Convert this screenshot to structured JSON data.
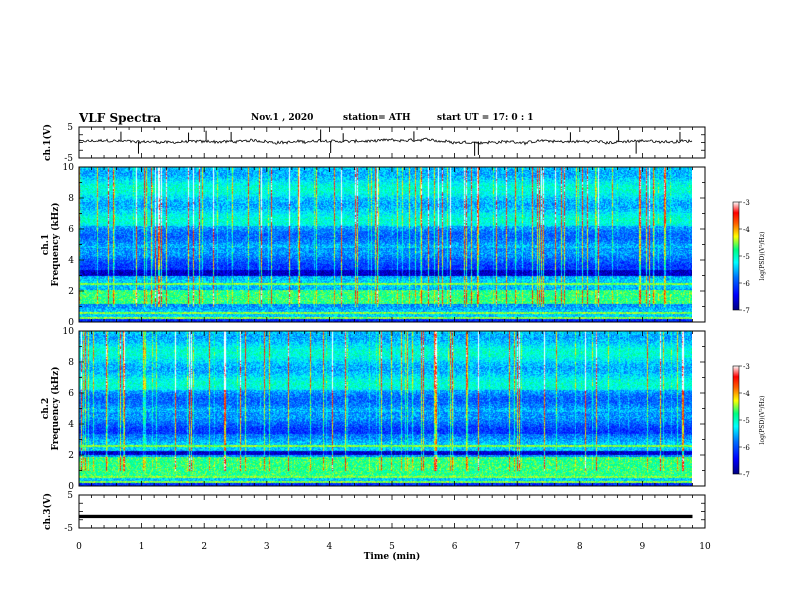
{
  "header": {
    "title": "VLF Spectra",
    "date": "Nov.1  , 2020",
    "station": "station= ATH",
    "start": "start  UT =   17: 0  : 1"
  },
  "chart_data": [
    {
      "id": "ch1-waveform",
      "type": "line",
      "ylabel": "ch.1(V)",
      "ylim": [
        -5,
        5
      ],
      "yticks": [
        "5",
        "-5"
      ],
      "xlim": [
        0,
        10
      ],
      "x_end": 9.8,
      "description_of_series": "noisy waveform near 0 V with occasional spikes",
      "baseline": 0.3,
      "spikes": [
        {
          "x": 0.67,
          "v": 3.5
        },
        {
          "x": 0.95,
          "v": -3.6
        },
        {
          "x": 1.75,
          "v": 3.2
        },
        {
          "x": 2.03,
          "v": 3.8
        },
        {
          "x": 2.43,
          "v": 3.4
        },
        {
          "x": 3.86,
          "v": 4.2
        },
        {
          "x": 4.02,
          "v": -3.4
        },
        {
          "x": 4.22,
          "v": 3.0
        },
        {
          "x": 5.35,
          "v": 3.6
        },
        {
          "x": 6.32,
          "v": -4.3
        },
        {
          "x": 6.38,
          "v": -4.0
        },
        {
          "x": 7.85,
          "v": 3.3
        },
        {
          "x": 8.62,
          "v": 4.0
        },
        {
          "x": 8.9,
          "v": -3.6
        },
        {
          "x": 9.6,
          "v": 3.4
        }
      ]
    },
    {
      "id": "ch1-spectrogram",
      "type": "heatmap",
      "ylabel": "ch.1\nFrequency (kHz)",
      "ylim": [
        0,
        10
      ],
      "yticks": [
        "0",
        "2",
        "4",
        "6",
        "8",
        "10"
      ],
      "xlim": [
        0,
        10
      ],
      "x_end": 9.8,
      "colorbar": {
        "label": "log(PSD)(V²/Hz)",
        "range": [
          -7,
          -3
        ],
        "ticks": [
          "-3",
          "-4",
          "-5",
          "-6",
          "-7"
        ]
      },
      "features": {
        "dark_band_khz": [
          3.0,
          3.4
        ],
        "strong_low_band_khz": [
          1.2,
          2.1
        ],
        "line_khz": [
          0.3,
          0.6,
          2.5
        ]
      }
    },
    {
      "id": "ch2-spectrogram",
      "type": "heatmap",
      "ylabel": "ch.2\nFrequency (kHz)",
      "ylim": [
        0,
        10
      ],
      "yticks": [
        "0",
        "2",
        "4",
        "6",
        "8",
        "10"
      ],
      "xlim": [
        0,
        10
      ],
      "x_end": 9.8,
      "colorbar": {
        "label": "log(PSD)(V²/Hz)",
        "range": [
          -7,
          -3
        ],
        "ticks": [
          "-3",
          "-4",
          "-5",
          "-6",
          "-7"
        ]
      },
      "features": {
        "dark_band_khz": [
          2.0,
          2.3
        ],
        "strong_low_band_khz": [
          0.7,
          1.9
        ],
        "line_khz": [
          0.3,
          0.6,
          2.6
        ]
      }
    },
    {
      "id": "ch3-waveform",
      "type": "line",
      "ylabel": "ch.3(V)",
      "ylim": [
        -5,
        5
      ],
      "yticks": [
        "5",
        "-5"
      ],
      "xlim": [
        0,
        10
      ],
      "x_end": 9.8,
      "description_of_series": "dense flat signal around -1.5 V",
      "baseline": -1.5,
      "thickness_v": 1.0
    }
  ],
  "xaxis": {
    "label": "Time (min)",
    "ticks": [
      "0",
      "1",
      "2",
      "3",
      "4",
      "5",
      "6",
      "7",
      "8",
      "9",
      "10"
    ]
  },
  "colors": {
    "spectrogram_scale": [
      "#000080",
      "#0000ff",
      "#0070ff",
      "#00ffff",
      "#00ff80",
      "#ffff00",
      "#ff6000",
      "#ff0000",
      "#ffffff"
    ],
    "axes": "#000000",
    "trace": "#000000"
  }
}
